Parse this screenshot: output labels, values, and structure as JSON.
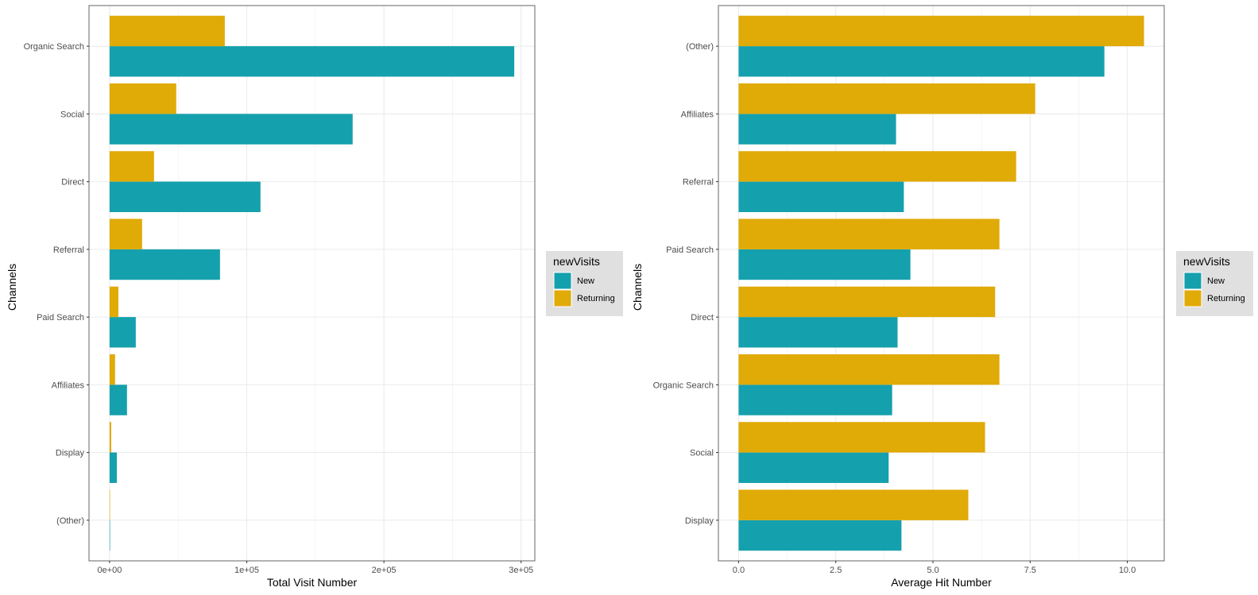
{
  "colors": {
    "New": "#15A0AD",
    "Returning": "#E0AA07",
    "grid": "#EBEBEB",
    "panel_border": "#666666",
    "legend_bg": "#E0E0E0"
  },
  "chart_data": [
    {
      "type": "bar",
      "orientation": "horizontal",
      "title": "",
      "xlabel": "Total Visit Number",
      "ylabel": "Channels",
      "categories": [
        "Organic Search",
        "Social",
        "Direct",
        "Referral",
        "Paid Search",
        "Affiliates",
        "Display",
        "(Other)"
      ],
      "series": [
        {
          "name": "New",
          "values": [
            295000,
            177200,
            110000,
            80500,
            19100,
            12700,
            5300,
            120
          ]
        },
        {
          "name": "Returning",
          "values": [
            84000,
            48600,
            32400,
            23700,
            6400,
            4000,
            1200,
            10
          ]
        }
      ],
      "xlim": [
        -15000,
        310000
      ],
      "x_ticks": [
        0,
        100000,
        200000,
        300000
      ],
      "x_tick_labels": [
        "0e+00",
        "1e+05",
        "2e+05",
        "3e+05"
      ],
      "grid": true,
      "legend": {
        "title": "newVisits",
        "entries": [
          "New",
          "Returning"
        ],
        "placement": "right"
      }
    },
    {
      "type": "bar",
      "orientation": "horizontal",
      "title": "",
      "xlabel": "Average Hit Number",
      "ylabel": "Channels",
      "categories": [
        "(Other)",
        "Affiliates",
        "Referral",
        "Paid Search",
        "Direct",
        "Organic Search",
        "Social",
        "Display"
      ],
      "series": [
        {
          "name": "New",
          "values": [
            9.41,
            4.05,
            4.25,
            4.42,
            4.09,
            3.95,
            3.86,
            4.19
          ]
        },
        {
          "name": "Returning",
          "values": [
            10.43,
            7.63,
            7.14,
            6.71,
            6.6,
            6.71,
            6.34,
            5.91
          ]
        }
      ],
      "xlim": [
        -0.52,
        10.95
      ],
      "x_ticks": [
        0,
        2.5,
        5,
        7.5,
        10
      ],
      "x_tick_labels": [
        "0.0",
        "2.5",
        "5.0",
        "7.5",
        "10.0"
      ],
      "grid": true,
      "legend": {
        "title": "newVisits",
        "entries": [
          "New",
          "Returning"
        ],
        "placement": "right"
      }
    }
  ]
}
